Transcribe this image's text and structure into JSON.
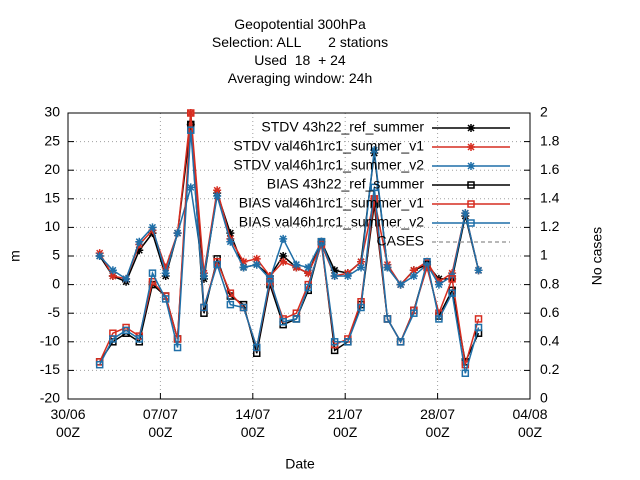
{
  "chart_data": {
    "type": "line",
    "title": "Geopotential 300hPa\nSelection: ALL       2 stations\nUsed  18  + 24\nAveraging window: 24h",
    "xlabel": "Date",
    "ylabel": "m",
    "y2label": "No cases",
    "grid": true,
    "legend": "top-right",
    "xlim": [
      0,
      35
    ],
    "xticks": [
      {
        "value": 0,
        "label": "30/06\n00Z"
      },
      {
        "value": 7,
        "label": "07/07\n00Z"
      },
      {
        "value": 14,
        "label": "14/07\n00Z"
      },
      {
        "value": 21,
        "label": "21/07\n00Z"
      },
      {
        "value": 28,
        "label": "28/07\n00Z"
      },
      {
        "value": 35,
        "label": "04/08\n00Z"
      }
    ],
    "ylim": [
      -20,
      30
    ],
    "yticks": [
      -20,
      -15,
      -10,
      -5,
      0,
      5,
      10,
      15,
      20,
      25,
      30
    ],
    "y2lim": [
      0,
      2
    ],
    "y2ticks": [
      0,
      0.2,
      0.4,
      0.6,
      0.8,
      1,
      1.2,
      1.4,
      1.6,
      1.8,
      2
    ],
    "x": [
      2.4,
      3.4,
      4.4,
      5.4,
      6.4,
      7.4,
      8.3,
      9.3,
      10.3,
      11.3,
      12.3,
      13.3,
      14.3,
      15.3,
      16.3,
      17.3,
      18.2,
      19.2,
      20.2,
      21.2,
      22.2,
      23.2,
      24.2,
      25.2,
      26.2,
      27.2,
      28.1,
      29.1,
      30.1,
      31.1
    ],
    "series": [
      {
        "name": "STDV 43h22_ref_summer",
        "color": "#000000",
        "marker": "asterisk",
        "values": [
          5,
          1.5,
          0.5,
          6,
          9,
          1.5,
          9,
          28,
          1,
          16,
          9,
          3,
          3.5,
          1.5,
          5,
          3,
          2,
          7.5,
          2.5,
          2,
          4,
          23,
          3,
          0,
          2.5,
          3.5,
          1,
          1,
          12,
          2.5
        ]
      },
      {
        "name": "STDV val46h1rc1_summer_v1",
        "color": "#d62d20",
        "marker": "asterisk",
        "values": [
          5.5,
          1.5,
          1,
          7,
          9.5,
          3,
          9,
          30,
          2,
          16.5,
          8,
          4,
          4.5,
          1.5,
          4,
          3,
          2,
          7,
          1.5,
          2,
          4,
          15,
          3.5,
          0,
          2.5,
          4,
          0.5,
          2,
          12.5,
          2.5
        ]
      },
      {
        "name": "STDV val46h1rc1_summer_v2",
        "color": "#1f6fa8",
        "marker": "asterisk",
        "values": [
          5,
          2.5,
          1,
          7.5,
          10,
          2,
          9,
          17,
          1.5,
          15.5,
          7.5,
          3,
          3.5,
          1,
          8,
          3.5,
          3,
          7.5,
          1.5,
          1.5,
          3,
          23.5,
          3,
          0,
          1.5,
          3.5,
          0,
          1.5,
          12.5,
          2.5
        ]
      },
      {
        "name": "BIAS 43h22_ref_summer",
        "color": "#000000",
        "marker": "square",
        "values": [
          -13.5,
          -10,
          -8.5,
          -10,
          0,
          -2,
          -9.5,
          28,
          -5,
          4.5,
          -2,
          -3.5,
          -12,
          0,
          -7,
          -6,
          -1,
          7.5,
          -11.5,
          -10,
          -3.5,
          14,
          -6,
          -10,
          -4.5,
          3.5,
          -5.5,
          -1,
          -13.5,
          -8.5
        ]
      },
      {
        "name": "BIAS val46h1rc1_summer_v1",
        "color": "#d62d20",
        "marker": "square",
        "values": [
          -13.5,
          -8.5,
          -7.5,
          -9,
          0.5,
          -2,
          -9.5,
          30,
          -4,
          4,
          -1.5,
          -4,
          -11,
          0.5,
          -6,
          -5,
          0,
          7,
          -10.5,
          -9.5,
          -3,
          15,
          -6,
          -10,
          -4.5,
          3,
          -5,
          1,
          -14,
          -6
        ]
      },
      {
        "name": "BIAS val46h1rc1_summer_v2",
        "color": "#1f6fa8",
        "marker": "square",
        "values": [
          -14,
          -9.5,
          -8,
          -9.5,
          2,
          -2.5,
          -11,
          27,
          -4,
          3.5,
          -3.5,
          -4,
          -11,
          1,
          -6.5,
          -6,
          -0.5,
          7.5,
          -10,
          -10,
          -4,
          17,
          -6,
          -10,
          -5,
          4,
          -6,
          -1.5,
          -15.5,
          -7.5
        ]
      },
      {
        "name": "CASES",
        "color": "#a0a0a0",
        "marker": "none",
        "dash": true,
        "axis": "y2",
        "values": [
          null,
          null,
          null,
          null,
          null,
          null,
          null,
          null,
          null,
          null,
          null,
          null,
          null,
          null,
          null,
          null,
          null,
          null,
          null,
          null,
          null,
          null,
          null,
          null,
          null,
          null,
          null,
          null,
          null,
          null
        ]
      }
    ]
  }
}
